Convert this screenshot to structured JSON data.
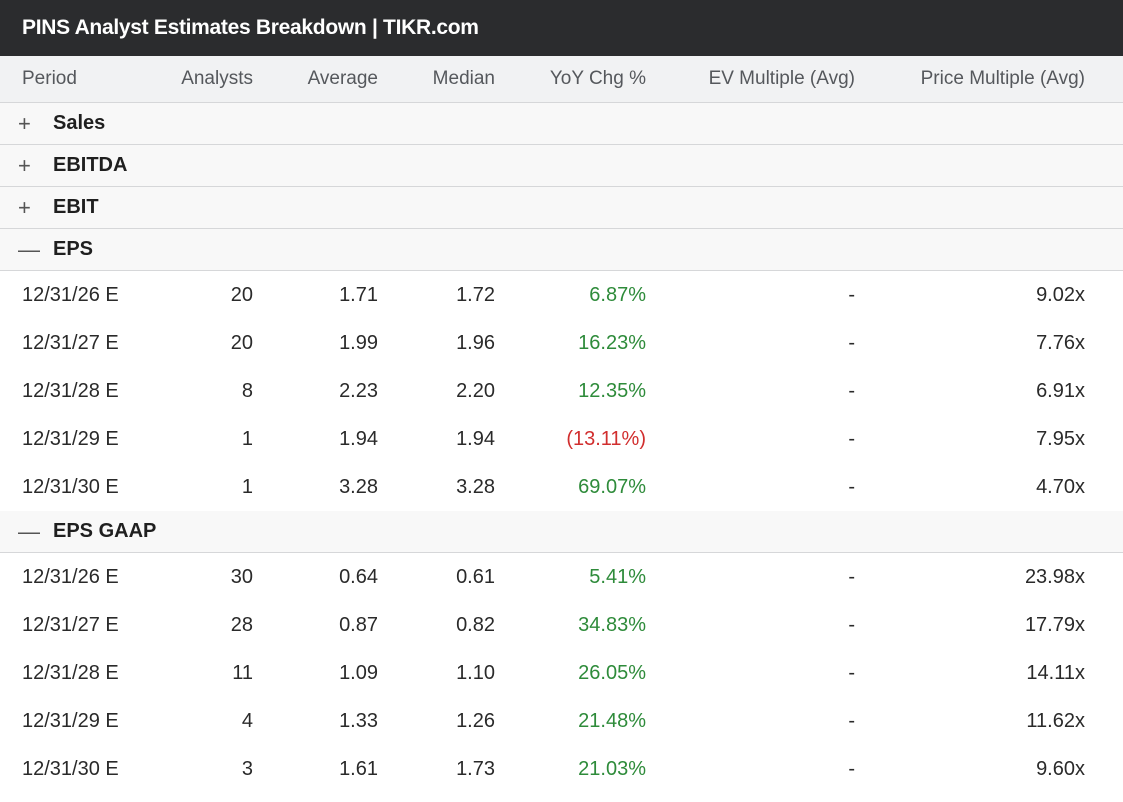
{
  "title": "PINS Analyst Estimates Breakdown | TIKR.com",
  "columns": {
    "period": "Period",
    "analysts": "Analysts",
    "average": "Average",
    "median": "Median",
    "yoy": "YoY Chg %",
    "ev": "EV Multiple (Avg)",
    "price": "Price Multiple (Avg)"
  },
  "sections": [
    {
      "toggle": "+",
      "label": "Sales"
    },
    {
      "toggle": "+",
      "label": "EBITDA"
    },
    {
      "toggle": "+",
      "label": "EBIT"
    },
    {
      "toggle": "—",
      "label": "EPS"
    },
    {
      "toggle": "—",
      "label": "EPS GAAP"
    }
  ],
  "eps_rows": [
    {
      "period": "12/31/26 E",
      "analysts": "20",
      "average": "1.71",
      "median": "1.72",
      "yoy": "6.87%",
      "ev": "-",
      "price": "9.02x"
    },
    {
      "period": "12/31/27 E",
      "analysts": "20",
      "average": "1.99",
      "median": "1.96",
      "yoy": "16.23%",
      "ev": "-",
      "price": "7.76x"
    },
    {
      "period": "12/31/28 E",
      "analysts": "8",
      "average": "2.23",
      "median": "2.20",
      "yoy": "12.35%",
      "ev": "-",
      "price": "6.91x"
    },
    {
      "period": "12/31/29 E",
      "analysts": "1",
      "average": "1.94",
      "median": "1.94",
      "yoy": "(13.11%)",
      "ev": "-",
      "price": "7.95x"
    },
    {
      "period": "12/31/30 E",
      "analysts": "1",
      "average": "3.28",
      "median": "3.28",
      "yoy": "69.07%",
      "ev": "-",
      "price": "4.70x"
    }
  ],
  "eps_gaap_rows": [
    {
      "period": "12/31/26 E",
      "analysts": "30",
      "average": "0.64",
      "median": "0.61",
      "yoy": "5.41%",
      "ev": "-",
      "price": "23.98x"
    },
    {
      "period": "12/31/27 E",
      "analysts": "28",
      "average": "0.87",
      "median": "0.82",
      "yoy": "34.83%",
      "ev": "-",
      "price": "17.79x"
    },
    {
      "period": "12/31/28 E",
      "analysts": "11",
      "average": "1.09",
      "median": "1.10",
      "yoy": "26.05%",
      "ev": "-",
      "price": "14.11x"
    },
    {
      "period": "12/31/29 E",
      "analysts": "4",
      "average": "1.33",
      "median": "1.26",
      "yoy": "21.48%",
      "ev": "-",
      "price": "11.62x"
    },
    {
      "period": "12/31/30 E",
      "analysts": "3",
      "average": "1.61",
      "median": "1.73",
      "yoy": "21.03%",
      "ev": "-",
      "price": "9.60x"
    }
  ],
  "colors": {
    "positive": "#2e8b3a",
    "negative": "#d12e2e",
    "header_bg": "#2b2c2e"
  }
}
